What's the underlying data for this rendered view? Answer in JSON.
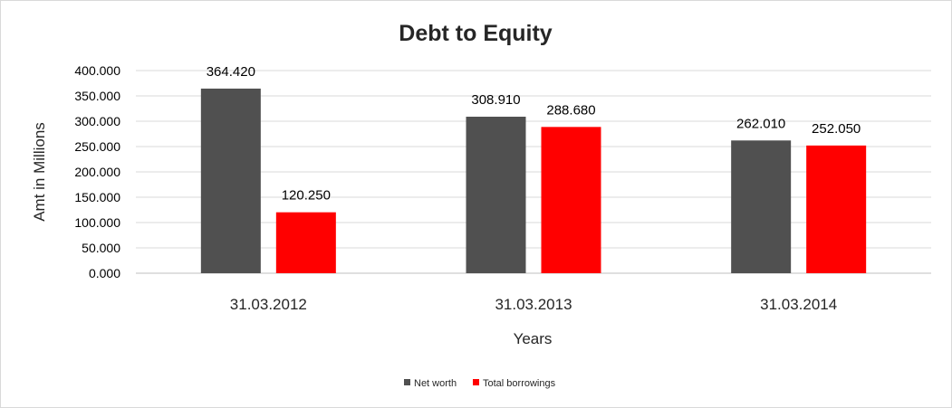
{
  "chart_data": {
    "type": "bar",
    "title": "Debt to Equity",
    "xlabel": "Years",
    "ylabel": "Amt in Millions",
    "categories": [
      "31.03.2012",
      "31.03.2013",
      "31.03.2014"
    ],
    "series": [
      {
        "name": "Net worth",
        "values": [
          364.42,
          308.91,
          262.01
        ],
        "labels": [
          "364.420",
          "308.910",
          "262.010"
        ],
        "color": "#505050"
      },
      {
        "name": "Total borrowings",
        "values": [
          120.25,
          288.68,
          252.05
        ],
        "labels": [
          "120.250",
          "288.680",
          "252.050"
        ],
        "color": "#ff0000"
      }
    ],
    "ylim": [
      0,
      400
    ],
    "yticks": [
      "0.000",
      "50.000",
      "100.000",
      "150.000",
      "200.000",
      "250.000",
      "300.000",
      "350.000",
      "400.000"
    ],
    "grid": true,
    "legend_position": "bottom"
  }
}
